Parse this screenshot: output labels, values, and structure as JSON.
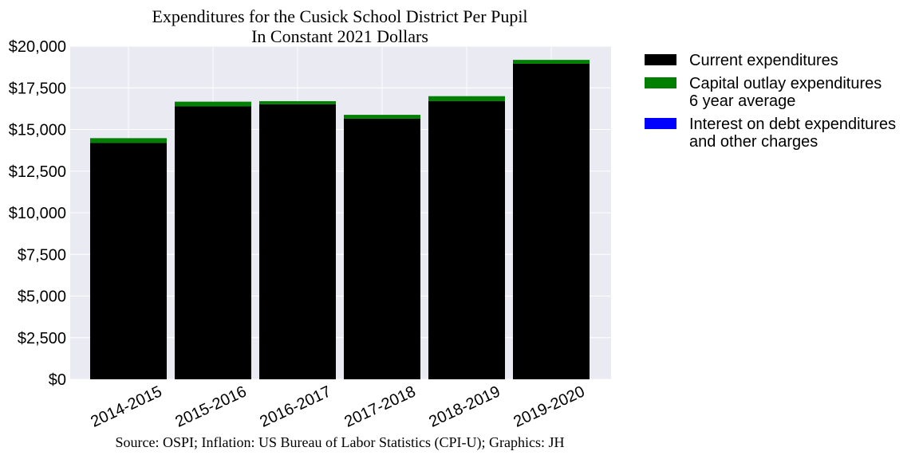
{
  "chart_data": {
    "type": "bar",
    "stacked": true,
    "title_line1": "Expenditures for the Cusick School District Per Pupil",
    "title_line2": "In Constant 2021 Dollars",
    "source": "Source: OSPI; Inflation: US Bureau of Labor Statistics (CPI-U); Graphics: JH",
    "categories": [
      "2014-2015",
      "2015-2016",
      "2016-2017",
      "2017-2018",
      "2018-2019",
      "2019-2020"
    ],
    "series": [
      {
        "name": "Current expenditures",
        "color": "#000000",
        "values": [
          14200,
          16400,
          16520,
          15650,
          16700,
          18950
        ]
      },
      {
        "name": "Capital outlay expenditures\n6 year average",
        "color": "#008000",
        "values": [
          280,
          270,
          180,
          230,
          300,
          230
        ]
      },
      {
        "name": "Interest on debt expenditures\nand other charges",
        "color": "#0000ff",
        "values": [
          0,
          0,
          0,
          0,
          0,
          0
        ]
      }
    ],
    "ylim": [
      0,
      20000
    ],
    "yticks": [
      0,
      2500,
      5000,
      7500,
      10000,
      12500,
      15000,
      17500,
      20000
    ],
    "ytick_labels": [
      "$0",
      "$2,500",
      "$5,000",
      "$7,500",
      "$10,000",
      "$12,500",
      "$15,000",
      "$17,500",
      "$20,000"
    ],
    "grid": true,
    "legend_position": "outside-right"
  }
}
